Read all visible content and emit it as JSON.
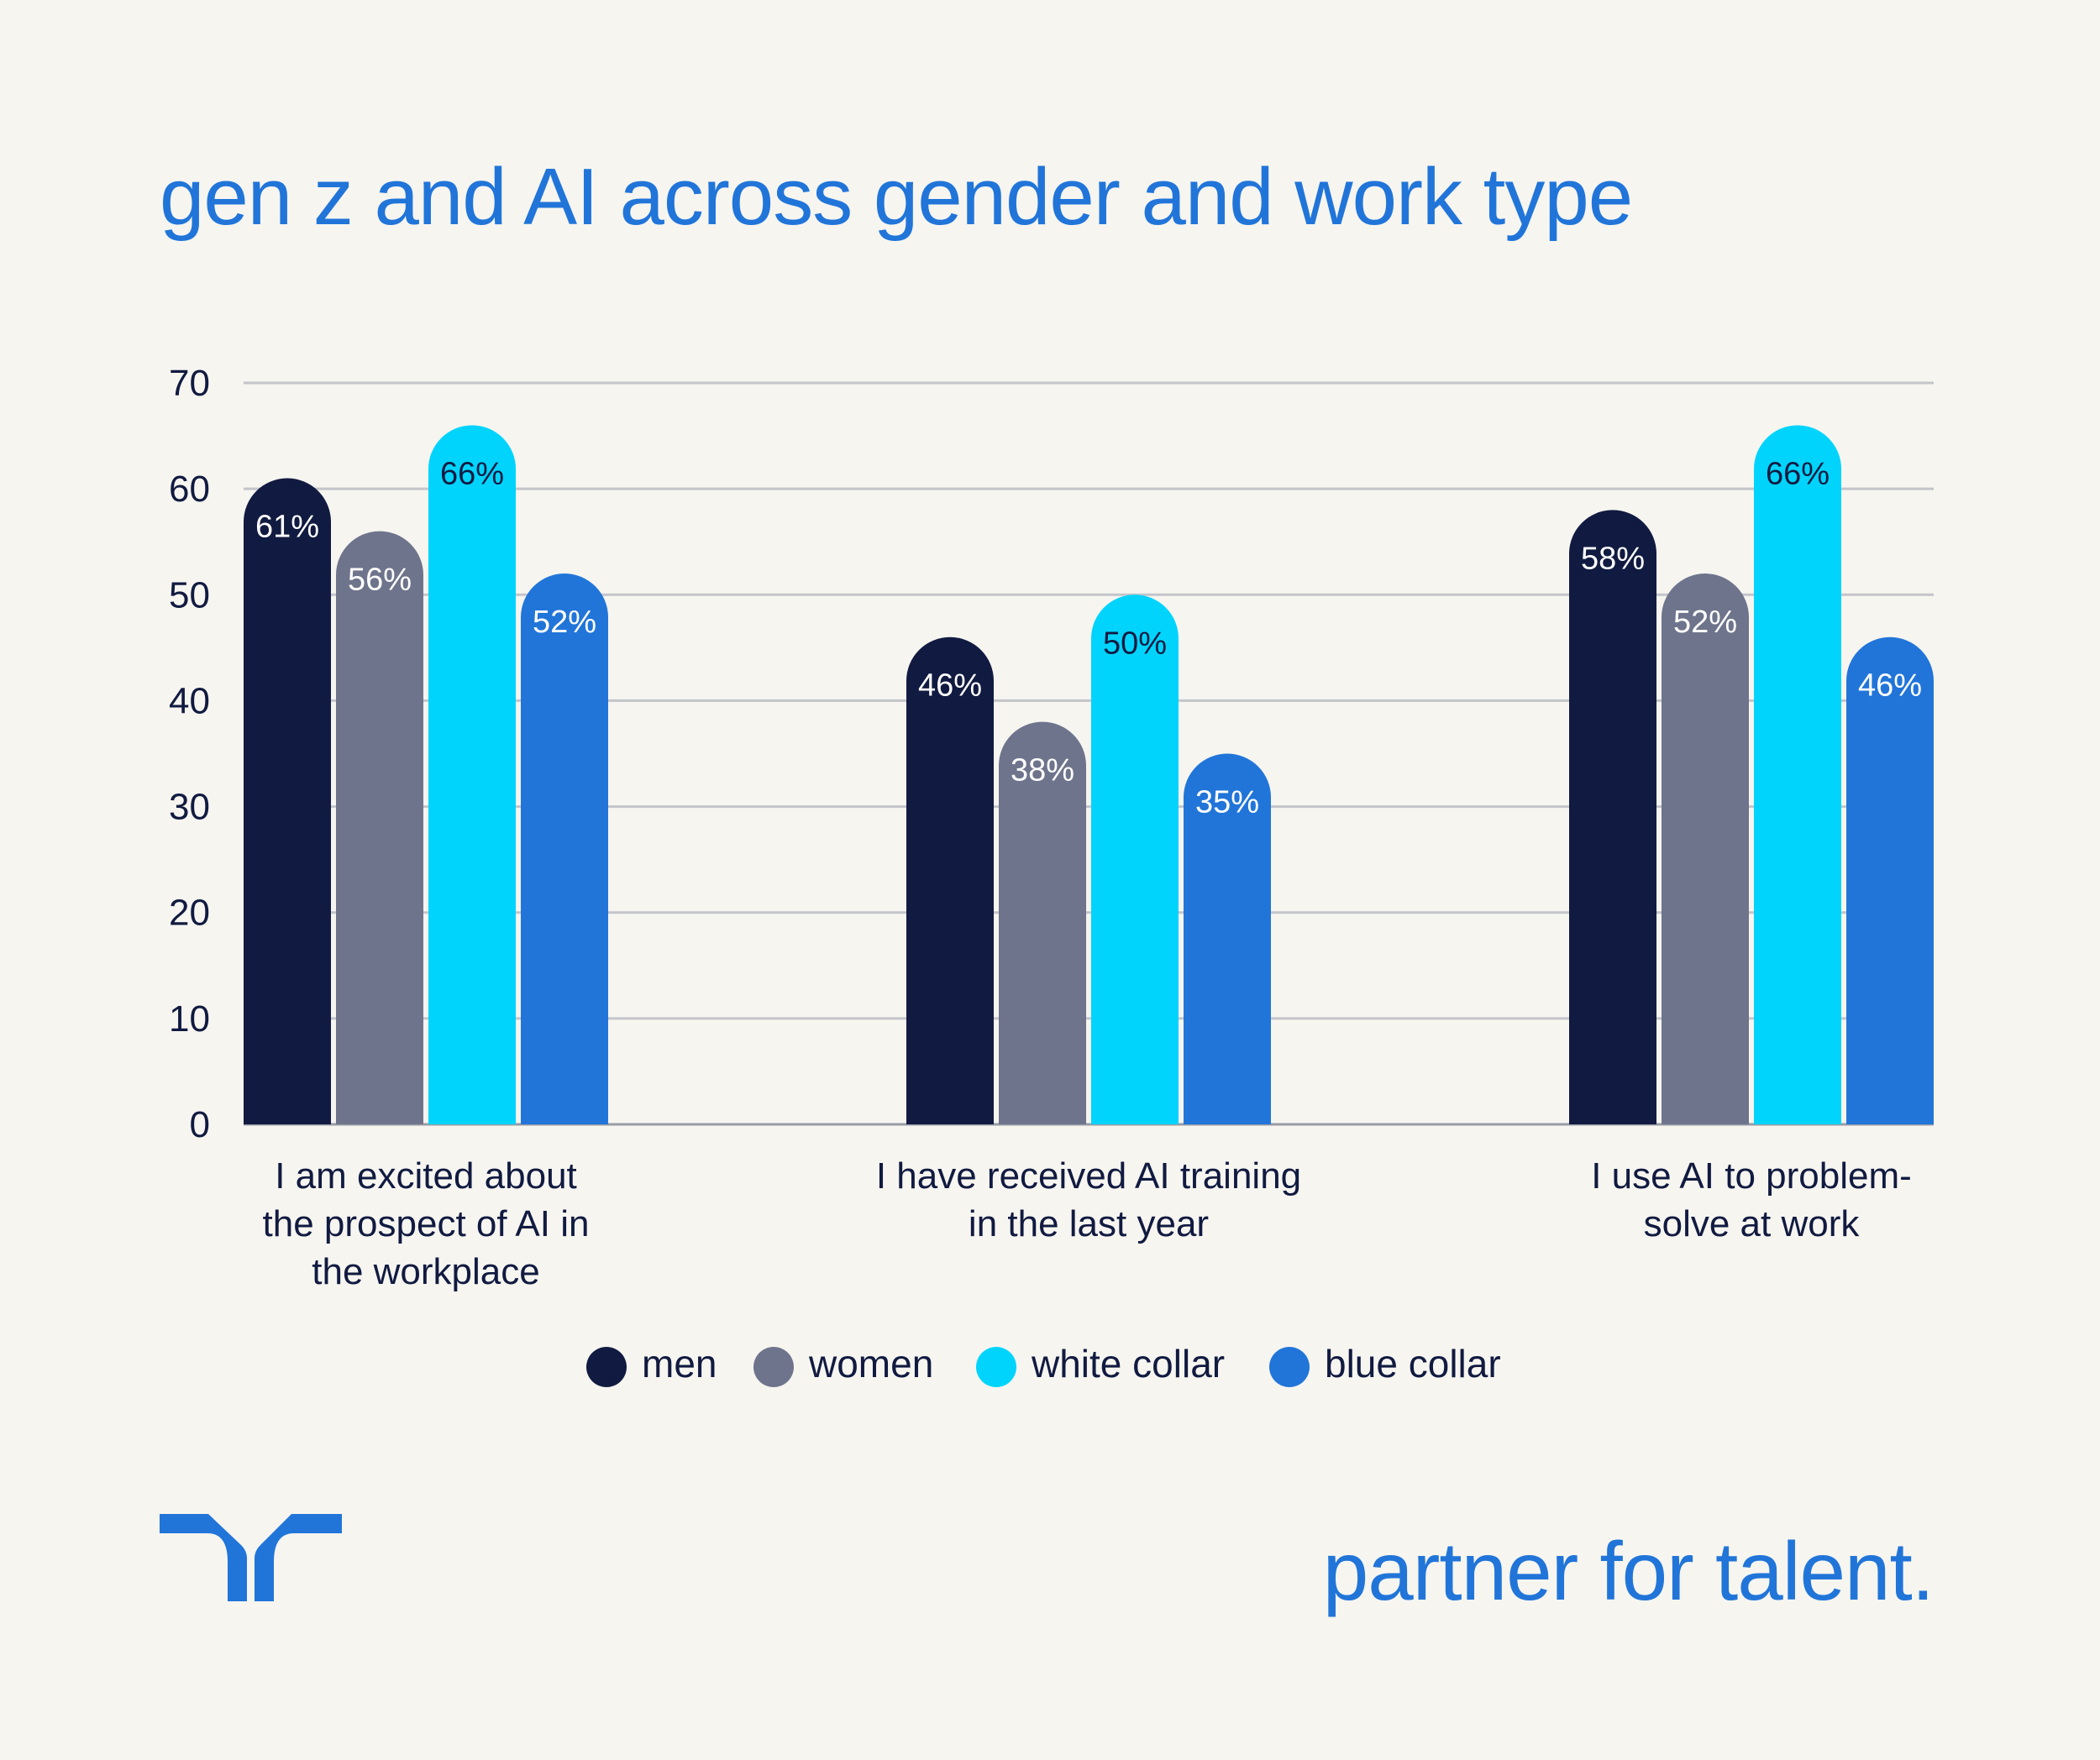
{
  "title": "gen z and AI across gender and work type",
  "tagline": "partner for talent.",
  "logo": "randstad-logo",
  "chart_data": {
    "type": "bar",
    "title": "gen z and AI across gender and work type",
    "xlabel": "",
    "ylabel": "",
    "ylim": [
      0,
      70
    ],
    "yticks": [
      0,
      10,
      20,
      30,
      40,
      50,
      60,
      70
    ],
    "grid": true,
    "legend_position": "bottom",
    "categories": [
      [
        "I am excited about",
        "the prospect of AI in",
        "the workplace"
      ],
      [
        "I have received AI training",
        "in the last year"
      ],
      [
        "I use AI to problem-",
        "solve at work"
      ]
    ],
    "series": [
      {
        "name": "men",
        "color": "#111a40",
        "label_color": "#ffffff",
        "values": [
          61,
          46,
          58
        ]
      },
      {
        "name": "women",
        "color": "#6e748b",
        "label_color": "#ffffff",
        "values": [
          56,
          38,
          52
        ]
      },
      {
        "name": "white collar",
        "color": "#00d4fd",
        "label_color": "#111a40",
        "values": [
          66,
          50,
          66
        ]
      },
      {
        "name": "blue collar",
        "color": "#2175d9",
        "label_color": "#ffffff",
        "values": [
          52,
          35,
          46
        ]
      }
    ],
    "value_suffix": "%"
  }
}
